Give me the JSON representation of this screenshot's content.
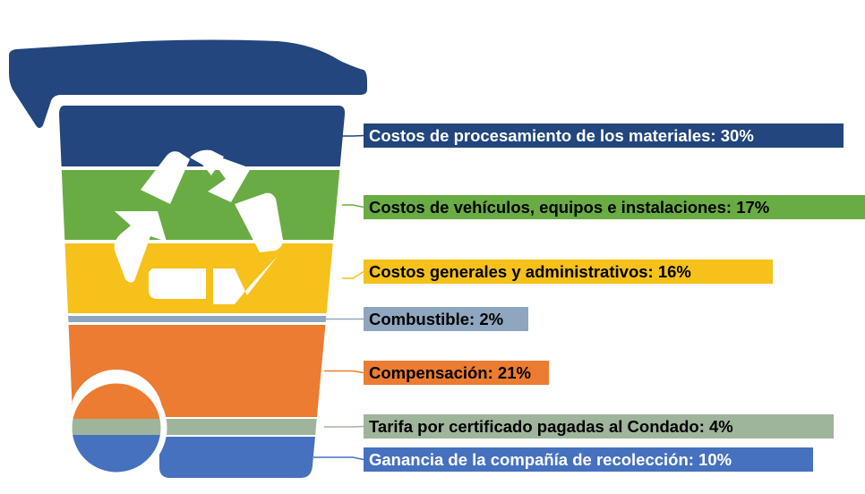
{
  "chart_data": {
    "type": "bar",
    "unit": "%",
    "categories": [
      "Costos de procesamiento de los materiales",
      "Costos de vehículos, equipos e instalaciones",
      "Costos generales y administrativos",
      "Combustible",
      "Compensación",
      "Tarifa por certificado pagadas al Condado",
      "Ganancia de la compañía de recolección"
    ],
    "values": [
      30,
      17,
      16,
      2,
      21,
      4,
      10
    ],
    "labels": [
      "Costos de procesamiento de los materiales: 30%",
      "Costos de vehículos, equipos e instalaciones: 17%",
      "Costos generales y administrativos: 16%",
      "Combustible: 2%",
      "Compensación: 21%",
      "Tarifa por certificado pagadas al Condado: 4%",
      "Ganancia de la compañía de recolección: 10%"
    ],
    "colors": [
      "#22467d",
      "#6aac44",
      "#f5c11a",
      "#8fa6c0",
      "#ec7c31",
      "#9fb59b",
      "#4671be"
    ],
    "label_text_colors": [
      "#ffffff",
      "#000000",
      "#000000",
      "#000000",
      "#000000",
      "#000000",
      "#ffffff"
    ],
    "bin_lid_color": "#22467d",
    "recycle_symbol": "recycle-icon"
  }
}
